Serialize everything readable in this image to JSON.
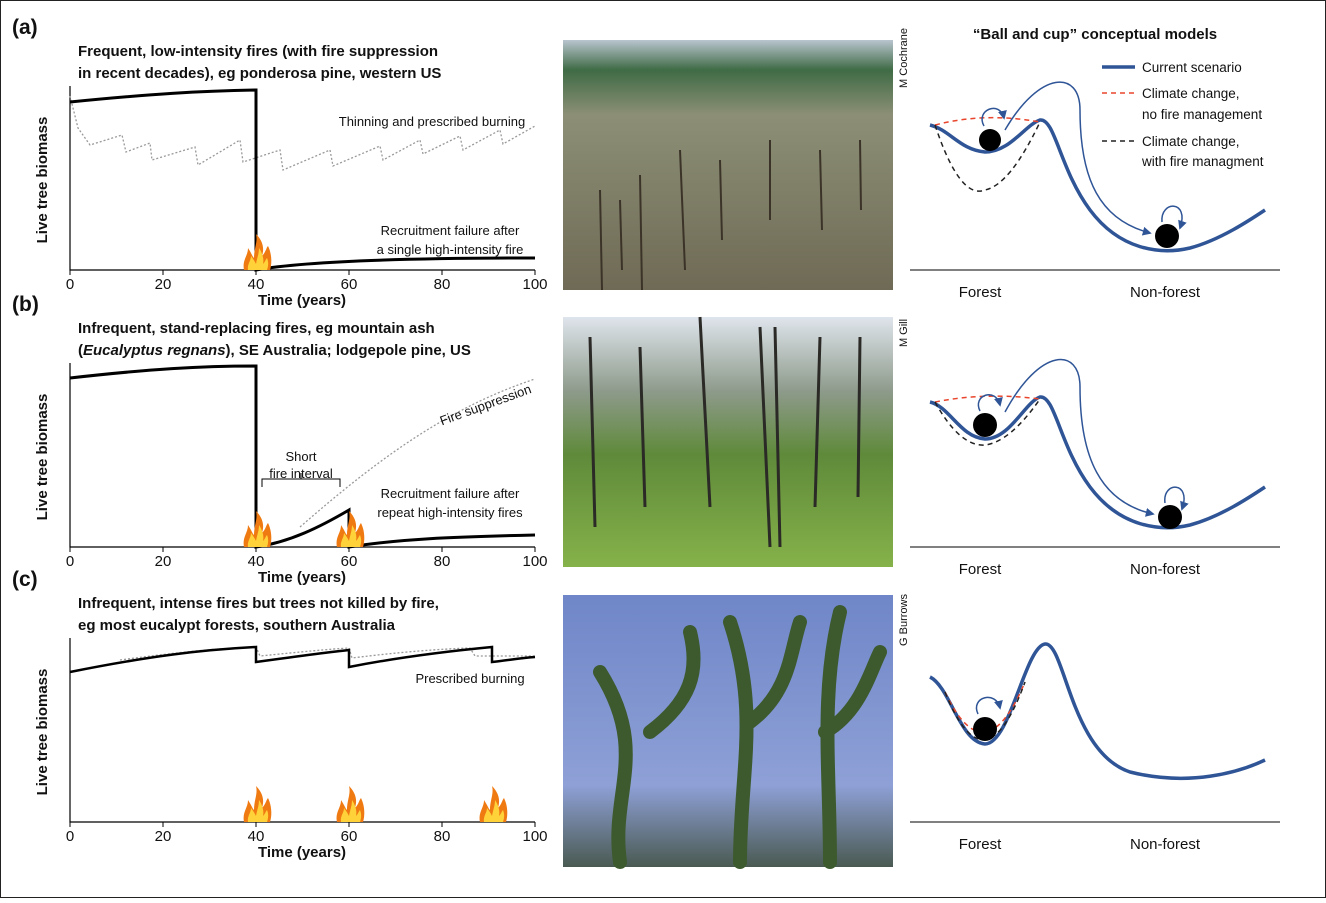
{
  "figure": {
    "cup_title": "“Ball and cup” conceptual models",
    "legend": [
      {
        "lines": [
          "Current scenario"
        ]
      },
      {
        "lines": [
          "Climate change,",
          "no fire management"
        ]
      },
      {
        "lines": [
          "Climate change,",
          "with fire managment"
        ]
      }
    ],
    "panels": [
      {
        "label": "(a)",
        "title": [
          [
            "Frequent, low-intensity fires (with fire suppression"
          ],
          [
            "in recent decades), eg ponderosa pine, western US"
          ]
        ],
        "y_label": "Live tree biomass",
        "x_label": "Time (years)",
        "xlim": [
          0,
          100
        ],
        "xticks": [
          0,
          20,
          40,
          60,
          80,
          100
        ],
        "annotations": [
          "Thinning and prescribed burning",
          "Recruitment failure after",
          "a single high-intensity fire"
        ],
        "photo_credit": "M Cochrane",
        "cup_labels": [
          "Forest",
          "Non-forest"
        ]
      },
      {
        "label": "(b)",
        "title": [
          [
            "Infrequent, stand-replacing fires, eg mountain ash"
          ],
          [
            "(",
            "Eucalyptus regnans",
            "), SE Australia; lodgepole pine, US"
          ]
        ],
        "y_label": "Live tree biomass",
        "x_label": "Time (years)",
        "xlim": [
          0,
          100
        ],
        "xticks": [
          0,
          20,
          40,
          60,
          80,
          100
        ],
        "annotations": [
          "Short",
          "fire interval",
          "Fire suppression",
          "Recruitment failure after",
          "repeat high-intensity fires"
        ],
        "photo_credit": "M Gill",
        "cup_labels": [
          "Forest",
          "Non-forest"
        ]
      },
      {
        "label": "(c)",
        "title": [
          [
            "Infrequent, intense fires but trees not killed by fire,"
          ],
          [
            "eg most eucalypt forests, southern Australia"
          ]
        ],
        "y_label": "Live tree biomass",
        "x_label": "Time (years)",
        "xlim": [
          0,
          100
        ],
        "xticks": [
          0,
          20,
          40,
          60,
          80,
          100
        ],
        "annotations": [
          "Prescribed burning"
        ],
        "photo_credit": "G Burrows",
        "cup_labels": [
          "Forest",
          "Non-forest"
        ]
      }
    ]
  }
}
